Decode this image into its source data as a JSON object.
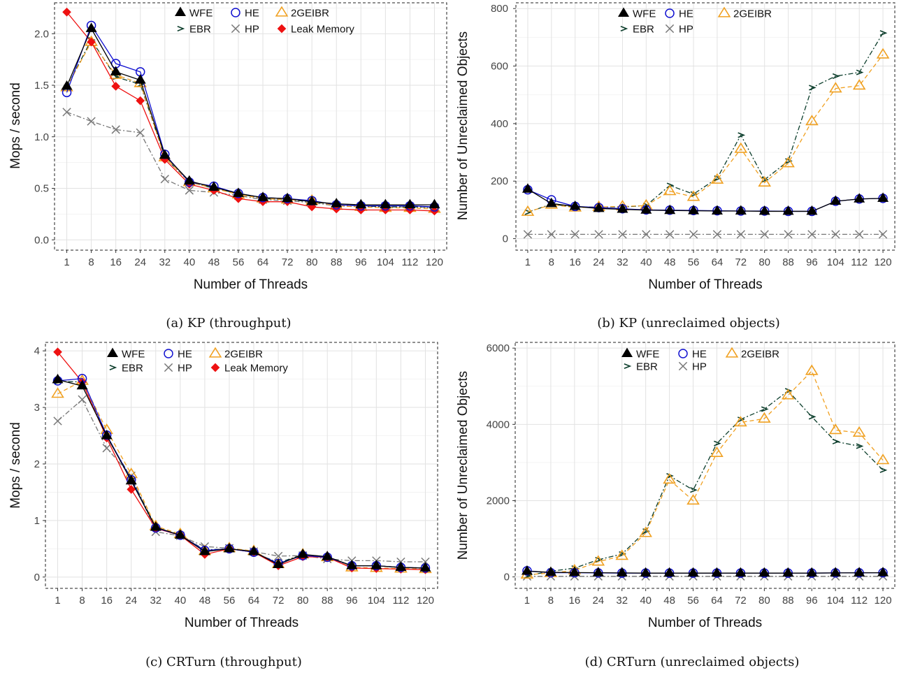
{
  "chart_data": [
    {
      "type": "line",
      "caption": "(a) KP (throughput)",
      "xlabel": "Number of Threads",
      "ylabel": "Mops / second",
      "categories": [
        "1",
        "8",
        "16",
        "24",
        "32",
        "40",
        "48",
        "56",
        "64",
        "72",
        "80",
        "88",
        "96",
        "104",
        "112",
        "120"
      ],
      "ylim": [
        -0.1,
        2.3
      ],
      "yticks": [
        "0.0",
        "0.5",
        "1.0",
        "1.5",
        "2.0"
      ],
      "grid": true,
      "legend_position": "top-center",
      "series": [
        {
          "name": "WFE",
          "color": "#000000",
          "marker": "triangle-filled",
          "dash": "solid",
          "values": [
            1.49,
            2.05,
            1.63,
            1.55,
            0.82,
            0.57,
            0.51,
            0.45,
            0.41,
            0.4,
            0.37,
            0.35,
            0.34,
            0.34,
            0.34,
            0.34
          ]
        },
        {
          "name": "EBR",
          "color": "#0b3d2b",
          "marker": "chevron",
          "dash": "dashdot",
          "values": [
            1.48,
            1.94,
            1.58,
            1.51,
            0.8,
            0.56,
            0.5,
            0.45,
            0.4,
            0.39,
            0.37,
            0.34,
            0.33,
            0.32,
            0.32,
            0.32
          ]
        },
        {
          "name": "HE",
          "color": "#1010d0",
          "marker": "circle-open",
          "dash": "solid",
          "values": [
            1.43,
            2.08,
            1.71,
            1.63,
            0.83,
            0.56,
            0.52,
            0.45,
            0.41,
            0.4,
            0.38,
            0.34,
            0.33,
            0.33,
            0.33,
            0.32
          ]
        },
        {
          "name": "HP",
          "color": "#777777",
          "marker": "cross",
          "dash": "dashdot",
          "values": [
            1.24,
            1.15,
            1.07,
            1.04,
            0.59,
            0.48,
            0.46,
            0.43,
            0.39,
            0.38,
            0.36,
            0.33,
            0.32,
            0.32,
            0.32,
            0.31
          ]
        },
        {
          "name": "2GEIBR",
          "color": "#f0a020",
          "marker": "triangle-open",
          "dash": "dashed",
          "values": [
            1.48,
            1.92,
            1.6,
            1.52,
            0.8,
            0.56,
            0.5,
            0.44,
            0.4,
            0.39,
            0.38,
            0.33,
            0.32,
            0.31,
            0.31,
            0.3
          ]
        },
        {
          "name": "Leak Memory",
          "color": "#ee1111",
          "marker": "diamond-filled",
          "dash": "solid",
          "values": [
            2.21,
            1.92,
            1.49,
            1.35,
            0.78,
            0.54,
            0.48,
            0.4,
            0.37,
            0.37,
            0.32,
            0.3,
            0.29,
            0.29,
            0.29,
            0.28
          ]
        }
      ]
    },
    {
      "type": "line",
      "caption": "(b) KP (unreclaimed objects)",
      "xlabel": "Number of Threads",
      "ylabel": "Number of Unreclaimed Objects",
      "categories": [
        "1",
        "8",
        "16",
        "24",
        "32",
        "40",
        "48",
        "56",
        "64",
        "72",
        "80",
        "88",
        "96",
        "104",
        "112",
        "120"
      ],
      "ylim": [
        -40,
        820
      ],
      "yticks": [
        "0",
        "200",
        "400",
        "600",
        "800"
      ],
      "grid": true,
      "legend_position": "top-center",
      "series": [
        {
          "name": "WFE",
          "color": "#000000",
          "marker": "triangle-filled",
          "dash": "solid",
          "values": [
            172,
            122,
            112,
            105,
            102,
            99,
            98,
            97,
            96,
            96,
            95,
            95,
            95,
            130,
            138,
            140
          ]
        },
        {
          "name": "EBR",
          "color": "#0b3d2b",
          "marker": "chevron",
          "dash": "dashdot",
          "values": [
            92,
            120,
            110,
            110,
            110,
            115,
            185,
            155,
            210,
            360,
            205,
            270,
            525,
            565,
            578,
            715
          ]
        },
        {
          "name": "HE",
          "color": "#1010d0",
          "marker": "circle-open",
          "dash": "solid",
          "values": [
            170,
            135,
            112,
            108,
            104,
            100,
            99,
            98,
            97,
            96,
            96,
            95,
            95,
            130,
            138,
            140
          ]
        },
        {
          "name": "HP",
          "color": "#777777",
          "marker": "cross",
          "dash": "dashdot",
          "values": [
            15,
            15,
            15,
            15,
            15,
            15,
            15,
            15,
            15,
            15,
            15,
            15,
            15,
            15,
            15,
            15
          ]
        },
        {
          "name": "2GEIBR",
          "color": "#f0a020",
          "marker": "triangle-open",
          "dash": "dashed",
          "values": [
            93,
            118,
            108,
            110,
            112,
            115,
            165,
            145,
            205,
            312,
            195,
            262,
            408,
            522,
            532,
            640
          ]
        }
      ]
    },
    {
      "type": "line",
      "caption": "(c) CRTurn (throughput)",
      "xlabel": "Number of Threads",
      "ylabel": "Mops / second",
      "categories": [
        "1",
        "8",
        "16",
        "24",
        "32",
        "40",
        "48",
        "56",
        "64",
        "72",
        "80",
        "88",
        "96",
        "104",
        "112",
        "120"
      ],
      "ylim": [
        -0.2,
        4.15
      ],
      "yticks": [
        "0",
        "1",
        "2",
        "3",
        "4"
      ],
      "grid": true,
      "legend_position": "top-center",
      "series": [
        {
          "name": "WFE",
          "color": "#000000",
          "marker": "triangle-filled",
          "dash": "solid",
          "values": [
            3.49,
            3.38,
            2.5,
            1.7,
            0.88,
            0.74,
            0.45,
            0.5,
            0.45,
            0.22,
            0.4,
            0.36,
            0.2,
            0.2,
            0.17,
            0.16
          ]
        },
        {
          "name": "EBR",
          "color": "#0b3d2b",
          "marker": "chevron",
          "dash": "dashdot",
          "values": [
            3.46,
            3.45,
            2.48,
            1.75,
            0.88,
            0.74,
            0.48,
            0.5,
            0.44,
            0.25,
            0.4,
            0.34,
            0.2,
            0.2,
            0.17,
            0.16
          ]
        },
        {
          "name": "HE",
          "color": "#1010d0",
          "marker": "circle-open",
          "dash": "solid",
          "values": [
            3.47,
            3.51,
            2.51,
            1.72,
            0.87,
            0.74,
            0.47,
            0.5,
            0.44,
            0.24,
            0.38,
            0.35,
            0.2,
            0.2,
            0.17,
            0.16
          ]
        },
        {
          "name": "HP",
          "color": "#777777",
          "marker": "cross",
          "dash": "dashdot",
          "values": [
            2.76,
            3.14,
            2.28,
            1.79,
            0.8,
            0.73,
            0.54,
            0.51,
            0.45,
            0.37,
            0.38,
            0.32,
            0.29,
            0.29,
            0.27,
            0.27
          ]
        },
        {
          "name": "2GEIBR",
          "color": "#f0a020",
          "marker": "triangle-open",
          "dash": "dashed",
          "values": [
            3.24,
            3.47,
            2.6,
            1.82,
            0.9,
            0.76,
            0.46,
            0.51,
            0.46,
            0.23,
            0.4,
            0.35,
            0.17,
            0.16,
            0.15,
            0.14
          ]
        },
        {
          "name": "Leak Memory",
          "color": "#ee1111",
          "marker": "diamond-filled",
          "dash": "solid",
          "values": [
            3.98,
            3.45,
            2.46,
            1.55,
            0.86,
            0.74,
            0.4,
            0.5,
            0.44,
            0.2,
            0.36,
            0.35,
            0.16,
            0.15,
            0.14,
            0.13
          ]
        }
      ]
    },
    {
      "type": "line",
      "caption": "(d) CRTurn (unreclaimed objects)",
      "xlabel": "Number of Threads",
      "ylabel": "Number of Unreclaimed Objects",
      "categories": [
        "1",
        "8",
        "16",
        "24",
        "32",
        "40",
        "48",
        "56",
        "64",
        "72",
        "80",
        "88",
        "96",
        "104",
        "112",
        "120"
      ],
      "ylim": [
        -300,
        6150
      ],
      "yticks": [
        "0",
        "2000",
        "4000",
        "6000"
      ],
      "grid": true,
      "legend_position": "top-center",
      "series": [
        {
          "name": "WFE",
          "color": "#000000",
          "marker": "triangle-filled",
          "dash": "solid",
          "values": [
            150,
            120,
            115,
            110,
            105,
            100,
            100,
            100,
            100,
            100,
            100,
            100,
            100,
            105,
            108,
            110
          ]
        },
        {
          "name": "EBR",
          "color": "#0b3d2b",
          "marker": "chevron",
          "dash": "dashdot",
          "values": [
            30,
            150,
            230,
            450,
            600,
            1200,
            2650,
            2280,
            3500,
            4130,
            4400,
            4880,
            4200,
            3550,
            3430,
            2800
          ]
        },
        {
          "name": "HE",
          "color": "#1010d0",
          "marker": "circle-open",
          "dash": "solid",
          "values": [
            160,
            110,
            110,
            105,
            100,
            100,
            100,
            100,
            100,
            100,
            100,
            100,
            100,
            105,
            108,
            110
          ]
        },
        {
          "name": "HP",
          "color": "#777777",
          "marker": "cross",
          "dash": "dashdot",
          "values": [
            15,
            15,
            15,
            15,
            15,
            15,
            15,
            15,
            15,
            15,
            15,
            15,
            15,
            15,
            15,
            15
          ]
        },
        {
          "name": "2GEIBR",
          "color": "#f0a020",
          "marker": "triangle-open",
          "dash": "dashed",
          "values": [
            60,
            100,
            170,
            400,
            550,
            1150,
            2550,
            2000,
            3250,
            4050,
            4150,
            4760,
            5400,
            3850,
            3780,
            3060
          ]
        }
      ]
    }
  ]
}
